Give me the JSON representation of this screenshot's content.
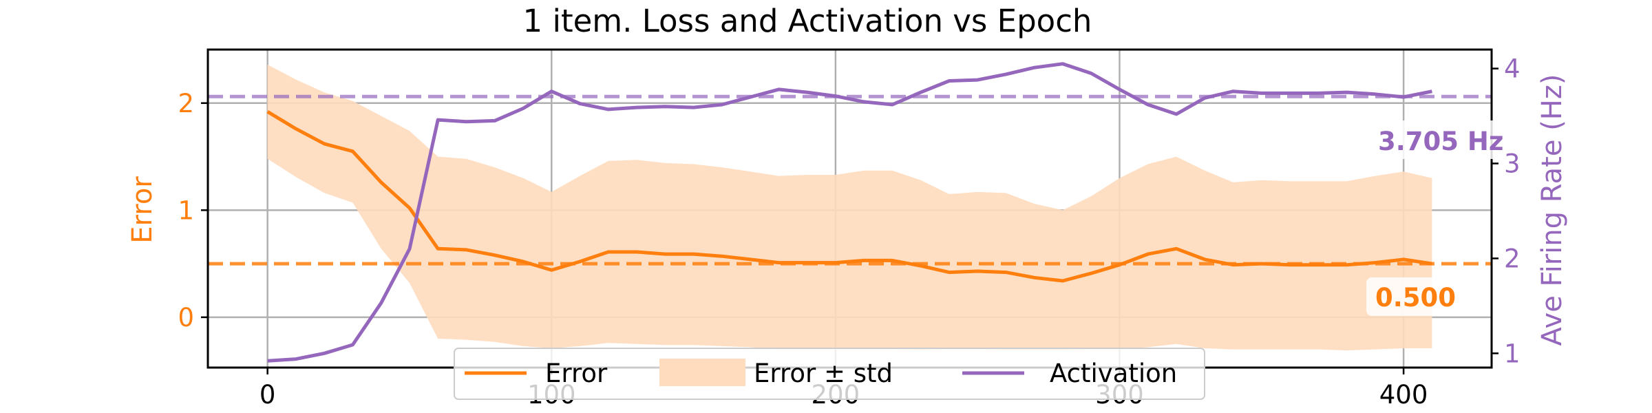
{
  "chart_data": {
    "type": "line",
    "title": "1 item. Loss and Activation vs Epoch",
    "xlabel": "",
    "ylabel_left": "Error",
    "ylabel_right": "Ave Firing Rate (Hz)",
    "xlim": [
      -21,
      431
    ],
    "ylim_left": [
      -0.47,
      2.5
    ],
    "ylim_right": [
      0.85,
      4.2
    ],
    "x_ticks": [
      0,
      100,
      200,
      300,
      400
    ],
    "y_ticks_left": [
      0,
      1,
      2
    ],
    "y_ticks_right": [
      1,
      2,
      3,
      4
    ],
    "grid": true,
    "legend_position": "lower-center",
    "colors": {
      "error": "#ff7f0e",
      "activation": "#9467bd",
      "band": "#ffdcbe"
    },
    "x": [
      0,
      10,
      20,
      30,
      40,
      50,
      60,
      70,
      80,
      90,
      100,
      110,
      120,
      130,
      140,
      150,
      160,
      170,
      180,
      190,
      200,
      210,
      220,
      230,
      240,
      250,
      260,
      270,
      280,
      290,
      300,
      310,
      320,
      330,
      340,
      350,
      360,
      370,
      380,
      390,
      400,
      410
    ],
    "series": [
      {
        "name": "Error",
        "axis": "left",
        "values": [
          1.92,
          1.76,
          1.62,
          1.55,
          1.26,
          1.02,
          0.64,
          0.63,
          0.58,
          0.52,
          0.44,
          0.52,
          0.61,
          0.61,
          0.59,
          0.59,
          0.57,
          0.54,
          0.51,
          0.51,
          0.51,
          0.53,
          0.53,
          0.48,
          0.42,
          0.43,
          0.42,
          0.37,
          0.34,
          0.41,
          0.49,
          0.59,
          0.64,
          0.54,
          0.49,
          0.5,
          0.49,
          0.49,
          0.49,
          0.51,
          0.54,
          0.5
        ]
      },
      {
        "name": "Error ± std",
        "axis": "left",
        "upper": [
          2.36,
          2.22,
          2.1,
          2.02,
          1.88,
          1.74,
          1.5,
          1.48,
          1.4,
          1.3,
          1.17,
          1.32,
          1.46,
          1.47,
          1.44,
          1.43,
          1.4,
          1.36,
          1.32,
          1.33,
          1.33,
          1.37,
          1.37,
          1.28,
          1.15,
          1.17,
          1.16,
          1.06,
          1.0,
          1.13,
          1.3,
          1.43,
          1.5,
          1.37,
          1.26,
          1.28,
          1.27,
          1.27,
          1.27,
          1.32,
          1.36,
          1.3
        ],
        "lower": [
          1.48,
          1.31,
          1.16,
          1.07,
          0.64,
          0.32,
          -0.2,
          -0.21,
          -0.23,
          -0.27,
          -0.29,
          -0.27,
          -0.24,
          -0.25,
          -0.26,
          -0.26,
          -0.27,
          -0.28,
          -0.3,
          -0.3,
          -0.3,
          -0.3,
          -0.3,
          -0.31,
          -0.3,
          -0.3,
          -0.31,
          -0.31,
          -0.31,
          -0.3,
          -0.3,
          -0.28,
          -0.25,
          -0.29,
          -0.3,
          -0.3,
          -0.3,
          -0.3,
          -0.31,
          -0.3,
          -0.29,
          -0.29
        ]
      },
      {
        "name": "Activation",
        "axis": "right",
        "values": [
          0.92,
          0.94,
          1.0,
          1.09,
          1.53,
          2.1,
          3.46,
          3.44,
          3.45,
          3.58,
          3.76,
          3.63,
          3.57,
          3.59,
          3.6,
          3.59,
          3.62,
          3.7,
          3.78,
          3.75,
          3.71,
          3.65,
          3.62,
          3.75,
          3.87,
          3.88,
          3.94,
          4.01,
          4.05,
          3.95,
          3.78,
          3.62,
          3.52,
          3.69,
          3.76,
          3.74,
          3.74,
          3.74,
          3.75,
          3.73,
          3.7,
          3.76
        ]
      }
    ],
    "reference_lines": [
      {
        "axis": "left",
        "value": 0.5,
        "color": "#ff7f0e"
      },
      {
        "axis": "right",
        "value": 3.705,
        "color": "#9467bd"
      }
    ],
    "annotations": [
      {
        "text": "3.705 Hz",
        "color": "#9467bd"
      },
      {
        "text": "0.500",
        "color": "#ff7f0e"
      }
    ]
  }
}
